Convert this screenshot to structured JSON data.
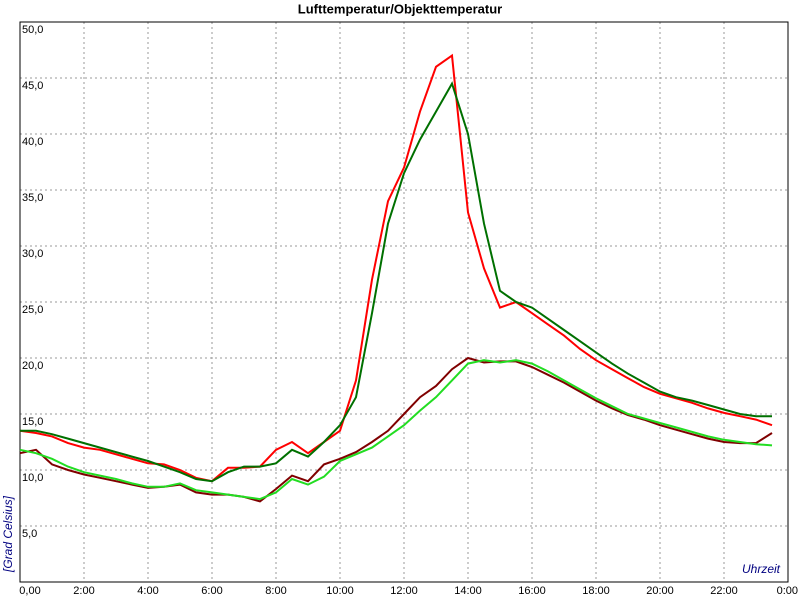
{
  "chart_data": {
    "type": "line",
    "title": "Lufttemperatur/Objekttemperatur",
    "y_label": "[Grad Celsius]",
    "x_label": "Uhrzeit",
    "xlim": [
      0,
      24
    ],
    "ylim": [
      0,
      50
    ],
    "grid": true,
    "xticks": [
      {
        "value": 0,
        "label": "0,00"
      },
      {
        "value": 2,
        "label": "2:00"
      },
      {
        "value": 4,
        "label": "4:00"
      },
      {
        "value": 6,
        "label": "6:00"
      },
      {
        "value": 8,
        "label": "8:00"
      },
      {
        "value": 10,
        "label": "10:00"
      },
      {
        "value": 12,
        "label": "12:00"
      },
      {
        "value": 14,
        "label": "14:00"
      },
      {
        "value": 16,
        "label": "16:00"
      },
      {
        "value": 18,
        "label": "18:00"
      },
      {
        "value": 20,
        "label": "20:00"
      },
      {
        "value": 22,
        "label": "22:00"
      },
      {
        "value": 24,
        "label": "0:00"
      }
    ],
    "yticks": [
      {
        "value": 5,
        "label": "5,0"
      },
      {
        "value": 10,
        "label": "10,0"
      },
      {
        "value": 15,
        "label": "15,0"
      },
      {
        "value": 20,
        "label": "20,0"
      },
      {
        "value": 25,
        "label": "25,0"
      },
      {
        "value": 30,
        "label": "30,0"
      },
      {
        "value": 35,
        "label": "35,0"
      },
      {
        "value": 40,
        "label": "40,0"
      },
      {
        "value": 45,
        "label": "45,0"
      },
      {
        "value": 50,
        "label": "50,0"
      }
    ],
    "x": [
      0,
      0.5,
      1,
      1.5,
      2,
      2.5,
      3,
      3.5,
      4,
      4.5,
      5,
      5.5,
      6,
      6.5,
      7,
      7.5,
      8,
      8.5,
      9,
      9.5,
      10,
      10.5,
      11,
      11.5,
      12,
      12.5,
      13,
      13.5,
      14,
      14.5,
      15,
      15.5,
      16,
      16.5,
      17,
      17.5,
      18,
      18.5,
      19,
      19.5,
      20,
      20.5,
      21,
      21.5,
      22,
      22.5,
      23,
      23.5
    ],
    "series": [
      {
        "color": "#ff0000",
        "values": [
          13.5,
          13.3,
          13,
          12.4,
          12,
          11.8,
          11.4,
          11,
          10.6,
          10.5,
          10,
          9.3,
          9,
          10.2,
          10.2,
          10.3,
          11.8,
          12.5,
          11.5,
          12.5,
          13.5,
          18,
          27,
          34,
          37,
          42,
          46,
          47,
          33,
          28,
          24.5,
          25,
          24,
          23,
          22,
          20.8,
          19.8,
          19,
          18.2,
          17.4,
          16.8,
          16.4,
          16,
          15.5,
          15.1,
          14.8,
          14.5,
          14
        ]
      },
      {
        "color": "#007000",
        "values": [
          13.5,
          13.5,
          13.2,
          12.8,
          12.4,
          12,
          11.6,
          11.2,
          10.8,
          10.3,
          9.8,
          9.2,
          9,
          9.8,
          10.3,
          10.3,
          10.6,
          11.8,
          11.2,
          12.5,
          14,
          16.5,
          24,
          32,
          36.5,
          39.5,
          42,
          44.5,
          40,
          32,
          26,
          25,
          24.5,
          23.5,
          22.5,
          21.5,
          20.5,
          19.5,
          18.6,
          17.8,
          17,
          16.5,
          16.2,
          15.8,
          15.4,
          15,
          14.8,
          14.8
        ]
      },
      {
        "color": "#800000",
        "values": [
          11.5,
          11.8,
          10.5,
          10,
          9.6,
          9.3,
          9,
          8.7,
          8.4,
          8.5,
          8.7,
          8,
          7.8,
          7.8,
          7.6,
          7.2,
          8.3,
          9.5,
          9,
          10.5,
          11,
          11.6,
          12.5,
          13.5,
          15,
          16.5,
          17.5,
          19,
          20,
          19.6,
          19.7,
          19.7,
          19.2,
          18.5,
          17.8,
          17,
          16.2,
          15.5,
          14.9,
          14.5,
          14,
          13.6,
          13.2,
          12.8,
          12.5,
          12.4,
          12.4,
          13.3
        ]
      },
      {
        "color": "#22dd22",
        "values": [
          11.8,
          11.5,
          11,
          10.3,
          9.8,
          9.5,
          9.2,
          8.8,
          8.5,
          8.5,
          8.8,
          8.2,
          8,
          7.8,
          7.6,
          7.4,
          8,
          9.2,
          8.7,
          9.4,
          10.8,
          11.4,
          12,
          13,
          14,
          15.3,
          16.5,
          18,
          19.5,
          19.8,
          19.6,
          19.8,
          19.5,
          18.8,
          18,
          17.2,
          16.4,
          15.7,
          15,
          14.6,
          14.2,
          13.8,
          13.4,
          13,
          12.7,
          12.5,
          12.3,
          12.2
        ]
      }
    ]
  }
}
